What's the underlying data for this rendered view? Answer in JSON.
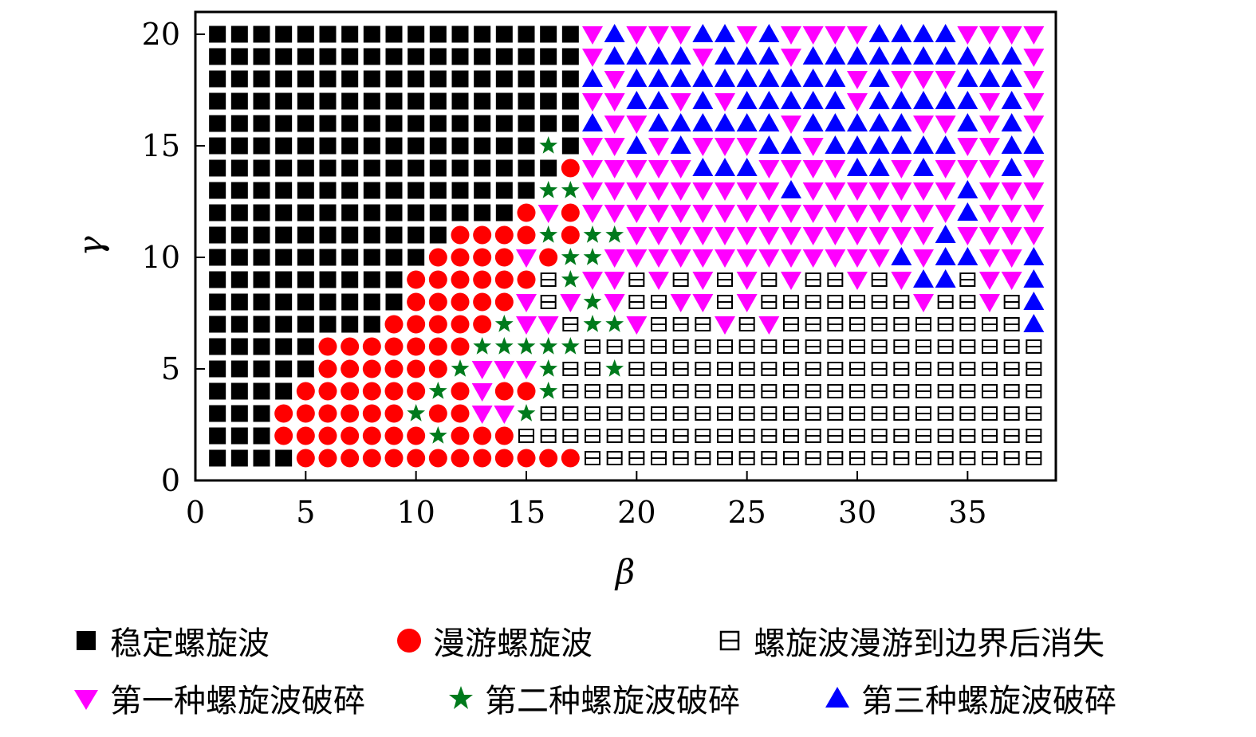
{
  "chart_data": {
    "type": "scatter",
    "title": "",
    "xlabel": "β",
    "ylabel": "γ",
    "xlim": [
      0,
      39
    ],
    "ylim": [
      0,
      21
    ],
    "xticks": [
      0,
      5,
      10,
      15,
      20,
      25,
      30,
      35
    ],
    "yticks": [
      0,
      5,
      10,
      15,
      20
    ],
    "x_range": [
      1,
      38
    ],
    "y_range": [
      1,
      20
    ],
    "grid": false,
    "legend_position": "bottom",
    "categories": [
      {
        "code": "S",
        "name": "稳定螺旋波",
        "marker": "filled-square",
        "color": "#000000"
      },
      {
        "code": "M",
        "name": "漫游螺旋波",
        "marker": "filled-circle",
        "color": "#ff0000"
      },
      {
        "code": "E",
        "name": "螺旋波漫游到边界后消失",
        "marker": "boxed-minus",
        "color": "#000000"
      },
      {
        "code": "D",
        "name": "第一种螺旋波破碎",
        "marker": "down-triangle",
        "color": "#ff00ff"
      },
      {
        "code": "G",
        "name": "第二种螺旋波破碎",
        "marker": "star",
        "color": "#007a1c"
      },
      {
        "code": "U",
        "name": "第三种螺旋波破碎",
        "marker": "up-triangle",
        "color": "#0000ff"
      }
    ],
    "grid_rows": {
      "20": "SSSSSSSSSSSSSSSSSDUDDDUUDUDDDDUUUUDDDD",
      "19": "SSSSSSSSSSSSSSSSSDUUUUDUUUDUUUUUUUUUUD",
      "18": "SSSSSSSSSSSSSSSSSUDUUUUUUUUUUDUDDDUUUD",
      "17": "SSSSSSSSSSSSSSSSSDDUUDUDUUUUUDUUUUUDUD",
      "16": "SSSSSSSSSSSSSSSSSUDDUUUUUUDUUUUUDDUDUD",
      "15": "SSSSSSSSSSSSSSSGSDDUDUDDDUUDUUUUUUDDUU",
      "14": "SSSSSSSSSSSSSSSSMDDDDDUUUDDDDUUDUDDDUD",
      "13": "SSSSSSSSSSSSSSSGGDDDDDDDDDUDDDDDDDUDDD",
      "12": "SSSSSSSSSSSSSSMDMDDDDDDDDDDDDDDDDDUDDD",
      "11": "SSSSSSSSSSSMMMMGMGGDDDDDDDDDDDDDDUDDDD",
      "10": "SSSSSSSSSSMMMMDMGGDDDDDDDDDDDDDUDUUDDU",
      "9": "SSSSSSSSSMMMMMMEGDDEDEDEDEDEEDEDUUEDDU",
      "8": "SSSSSSSSSMMMMMDEDGDEEDDEDEEEEEEEDEEDEU",
      "7": "SSSSSSSSMMMMMGDDEGGDEEEDEDEEEEEEEEEEEU",
      "6": "SSSSSMMMMMMMGGGGGEEEEEEEEEEEEEEEEEEEEE",
      "5": "SSSSSMMMMMMGDDDGEEGEEEEEEEEEEEEEEEEEEE",
      "4": "SSSSMMMMMMGMDMMGEEEEEEEEEEEEEEEEEEEEEE",
      "3": "SSSMMMMMMGMMDDGEEEEEEEEEEEEEEEEEEEEEEE",
      "2": "SSSMMMMMMMGMMMEEEEEEEEEEEEEEEEEEEEEEEE",
      "1": "SSSSMMMMMMMMMMMMMEEEEEEEEEEEEEEEEEEEEE"
    }
  }
}
